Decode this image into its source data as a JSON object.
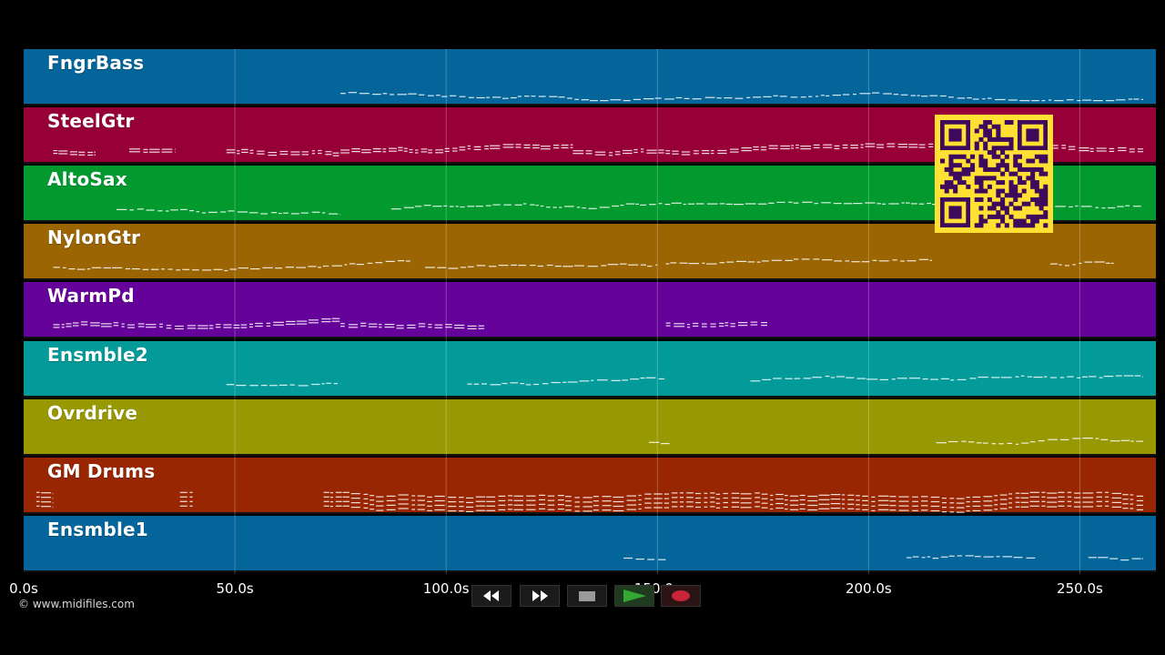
{
  "tracks": [
    {
      "name": "FngrBass",
      "color": "#03659a"
    },
    {
      "name": "SteelGtr",
      "color": "#970036"
    },
    {
      "name": "AltoSax",
      "color": "#029a2e"
    },
    {
      "name": "NylonGtr",
      "color": "#9a6502"
    },
    {
      "name": "WarmPd",
      "color": "#650299"
    },
    {
      "name": "Ensmble2",
      "color": "#039a9a"
    },
    {
      "name": "Ovrdrive",
      "color": "#989802"
    },
    {
      "name": "GM Drums",
      "color": "#982602"
    },
    {
      "name": "Ensmble1",
      "color": "#03659a"
    }
  ],
  "timeline": {
    "ticks": [
      "0.0s",
      "50.0s",
      "100.0s",
      "150.0s",
      "200.0s",
      "250.0s"
    ],
    "tick_values": [
      0,
      50,
      100,
      150,
      200,
      250
    ],
    "max_time": 268
  },
  "copyright": "© www.midifiles.com",
  "transport": {
    "buttons": [
      {
        "icon": "rewind-icon"
      },
      {
        "icon": "fast-forward-icon"
      },
      {
        "icon": "stop-icon"
      },
      {
        "icon": "play-icon"
      },
      {
        "icon": "record-icon"
      }
    ]
  },
  "colors": {
    "background": "#000000",
    "note": "#ffffff",
    "qr_fill": "#ffe033",
    "qr_dark": "#3d0a5c",
    "play": "#2f8f2f",
    "record": "#c8253a"
  },
  "note_regions": [
    [
      [
        75,
        265
      ]
    ],
    [
      [
        7,
        17
      ],
      [
        25,
        36
      ],
      [
        48,
        75
      ],
      [
        75,
        130
      ],
      [
        130,
        265
      ]
    ],
    [
      [
        22,
        75
      ],
      [
        87,
        265
      ]
    ],
    [
      [
        7,
        92
      ],
      [
        95,
        150
      ],
      [
        152,
        215
      ],
      [
        243,
        258
      ]
    ],
    [
      [
        7,
        75
      ],
      [
        75,
        109
      ],
      [
        152,
        176
      ]
    ],
    [
      [
        48,
        75
      ],
      [
        105,
        152
      ],
      [
        172,
        265
      ]
    ],
    [
      [
        148,
        153
      ],
      [
        216,
        265
      ]
    ],
    [
      [
        3,
        7
      ],
      [
        37,
        40
      ],
      [
        71,
        265
      ]
    ],
    [
      [
        142,
        152
      ],
      [
        209,
        240
      ],
      [
        252,
        265
      ]
    ]
  ]
}
